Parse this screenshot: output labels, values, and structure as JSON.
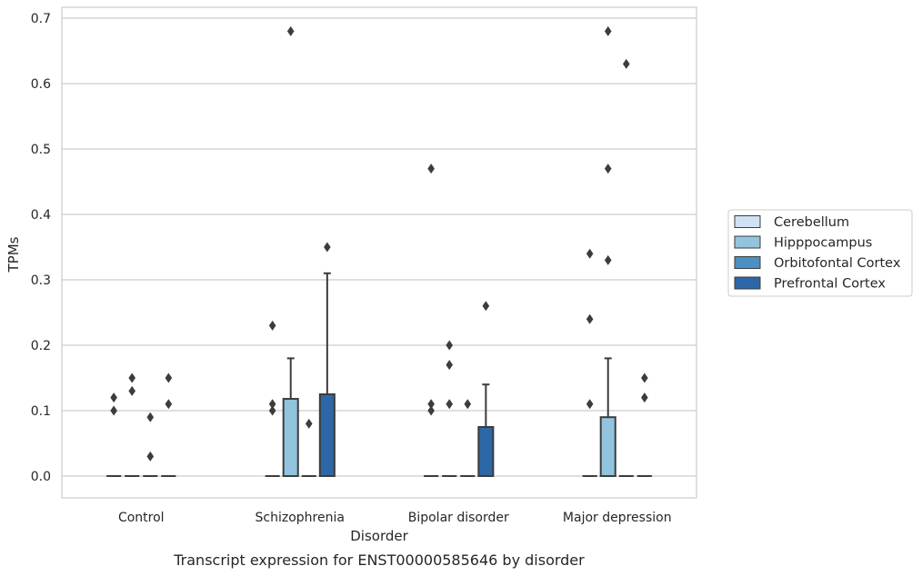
{
  "chart_data": {
    "type": "box",
    "caption": "Transcript expression for ENST00000585646 by disorder",
    "xlabel": "Disorder",
    "ylabel": "TPMs",
    "ylim": [
      -0.033,
      0.715
    ],
    "yticks": [
      0.0,
      0.1,
      0.2,
      0.3,
      0.4,
      0.5,
      0.6,
      0.7
    ],
    "ytick_labels": [
      "0.0",
      "0.1",
      "0.2",
      "0.3",
      "0.4",
      "0.5",
      "0.6",
      "0.7"
    ],
    "grid": true,
    "legend_position": "outside-right",
    "categories": [
      "Control",
      "Schizophrenia",
      "Bipolar disorder",
      "Major depression"
    ],
    "series": [
      {
        "name": "Cerebellum",
        "color": "#cfe1f2",
        "boxes": [
          {
            "q1": 0,
            "median": 0,
            "q3": 0,
            "whisker_high": 0,
            "outliers": [
              0.1,
              0.12
            ]
          },
          {
            "q1": 0,
            "median": 0,
            "q3": 0,
            "whisker_high": 0,
            "outliers": [
              0.1,
              0.11,
              0.23
            ]
          },
          {
            "q1": 0,
            "median": 0,
            "q3": 0,
            "whisker_high": 0,
            "outliers": [
              0.1,
              0.11,
              0.47
            ]
          },
          {
            "q1": 0,
            "median": 0,
            "q3": 0,
            "whisker_high": 0,
            "outliers": [
              0.11,
              0.24,
              0.34
            ]
          }
        ]
      },
      {
        "name": "Hipppocampus",
        "color": "#93c4de",
        "boxes": [
          {
            "q1": 0,
            "median": 0,
            "q3": 0,
            "whisker_high": 0,
            "outliers": [
              0.13,
              0.15
            ]
          },
          {
            "q1": 0,
            "median": 0,
            "q3": 0.118,
            "whisker_high": 0.18,
            "outliers": [
              0.68
            ]
          },
          {
            "q1": 0,
            "median": 0,
            "q3": 0,
            "whisker_high": 0,
            "outliers": [
              0.11,
              0.17,
              0.2
            ]
          },
          {
            "q1": 0,
            "median": 0,
            "q3": 0.09,
            "whisker_high": 0.18,
            "outliers": [
              0.33,
              0.47,
              0.68
            ]
          }
        ]
      },
      {
        "name": "Orbitofontal Cortex",
        "color": "#4b90c2",
        "boxes": [
          {
            "q1": 0,
            "median": 0,
            "q3": 0,
            "whisker_high": 0,
            "outliers": [
              0.03,
              0.09
            ]
          },
          {
            "q1": 0,
            "median": 0,
            "q3": 0,
            "whisker_high": 0,
            "outliers": [
              0.08
            ]
          },
          {
            "q1": 0,
            "median": 0,
            "q3": 0,
            "whisker_high": 0,
            "outliers": [
              0.11
            ]
          },
          {
            "q1": 0,
            "median": 0,
            "q3": 0,
            "whisker_high": 0,
            "outliers": [
              0.63
            ]
          }
        ]
      },
      {
        "name": "Prefrontal Cortex",
        "color": "#2d67a5",
        "boxes": [
          {
            "q1": 0,
            "median": 0,
            "q3": 0,
            "whisker_high": 0,
            "outliers": [
              0.11,
              0.15
            ]
          },
          {
            "q1": 0,
            "median": 0,
            "q3": 0.125,
            "whisker_high": 0.31,
            "outliers": [
              0.35
            ]
          },
          {
            "q1": 0,
            "median": 0,
            "q3": 0.075,
            "whisker_high": 0.14,
            "outliers": [
              0.26
            ]
          },
          {
            "q1": 0,
            "median": 0,
            "q3": 0,
            "whisker_high": 0,
            "outliers": [
              0.12,
              0.15
            ]
          }
        ]
      }
    ]
  }
}
